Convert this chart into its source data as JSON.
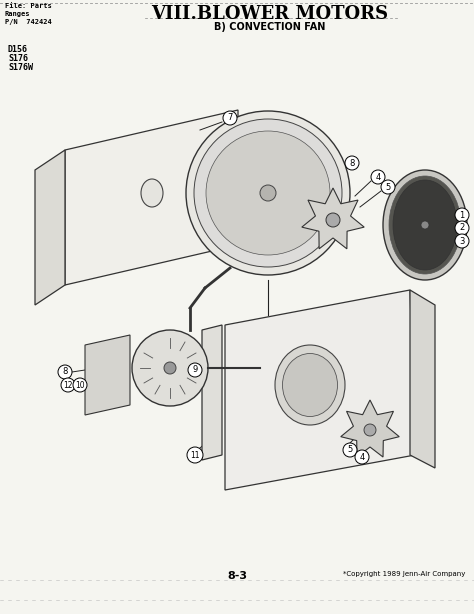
{
  "title": "VIII.BLOWER MOTORS",
  "subtitle": "B) CONVECTION FAN",
  "file_label": "File: Parts",
  "ranges_label": "Ranges",
  "pn_label": "P/N  742424",
  "model_lines": [
    "D156",
    "S176",
    "S176W"
  ],
  "page_number": "8-3",
  "copyright": "*Copyright 1989 Jenn-Air Company",
  "bg_color": "#f5f5f0",
  "line_color": "#222222"
}
